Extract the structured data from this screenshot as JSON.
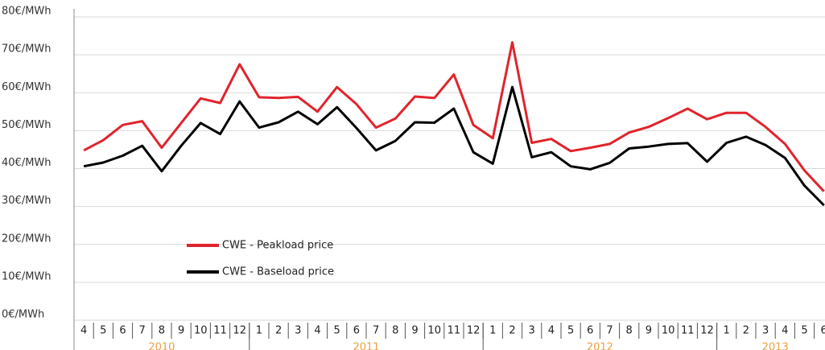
{
  "chart_data": {
    "type": "line",
    "categories": [
      "4",
      "5",
      "6",
      "7",
      "8",
      "9",
      "10",
      "11",
      "12",
      "1",
      "2",
      "3",
      "4",
      "5",
      "6",
      "7",
      "8",
      "9",
      "10",
      "11",
      "12",
      "1",
      "2",
      "3",
      "4",
      "5",
      "6",
      "7",
      "8",
      "9",
      "10",
      "11",
      "12",
      "1",
      "2",
      "3",
      "4",
      "5",
      "6"
    ],
    "years": [
      "2010",
      "2011",
      "2012",
      "2013"
    ],
    "series": [
      {
        "name": "CWE - Peakload price",
        "color": "#e0242c",
        "values": [
          44.8,
          47.5,
          51.5,
          52.5,
          45.5,
          52,
          58.5,
          57.3,
          67.5,
          58.8,
          58.6,
          58.9,
          55,
          61.5,
          57,
          50.8,
          53.2,
          59,
          58.6,
          64.8,
          51.5,
          48,
          73.3,
          46.8,
          47.8,
          44.6,
          45.5,
          46.5,
          49.5,
          51,
          53.3,
          55.8,
          53,
          54.7,
          54.7,
          51,
          46.5,
          39.5,
          34
        ]
      },
      {
        "name": "CWE - Baseload price",
        "color": "#000000",
        "values": [
          40.6,
          41.6,
          43.4,
          46,
          39.3,
          46,
          52,
          49.1,
          57.7,
          50.8,
          52.2,
          55,
          51.7,
          56.2,
          50.7,
          44.8,
          47.3,
          52.2,
          52.1,
          55.8,
          44.3,
          41.3,
          61.5,
          43,
          44.3,
          40.6,
          39.8,
          41.5,
          45.3,
          45.8,
          46.5,
          46.7,
          41.8,
          46.8,
          48.4,
          46.2,
          42.8,
          35.5,
          30.3
        ]
      }
    ],
    "ylim": [
      0,
      80
    ],
    "yticks": [
      {
        "value": 0,
        "label": "0€/MWh"
      },
      {
        "value": 10,
        "label": "10€/MWh"
      },
      {
        "value": 20,
        "label": "20€/MWh"
      },
      {
        "value": 30,
        "label": "30€/MWh"
      },
      {
        "value": 40,
        "label": "40€/MWh"
      },
      {
        "value": 50,
        "label": "50€/MWh"
      },
      {
        "value": 60,
        "label": "60€/MWh"
      },
      {
        "value": 70,
        "label": "70€/MWh"
      },
      {
        "value": 80,
        "label": "80€/MWh"
      }
    ],
    "grid": true
  }
}
